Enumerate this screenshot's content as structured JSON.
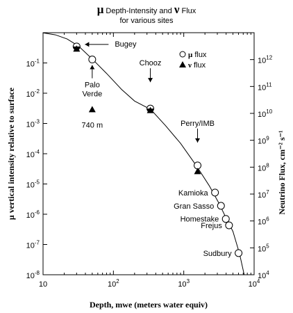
{
  "chart_data": {
    "type": "scatter",
    "title_parts": [
      {
        "text": "μ",
        "style": "bold-symbol"
      },
      {
        "text": " Depth-Intensity and ",
        "style": "plain"
      },
      {
        "text": "ν",
        "style": "bold-symbol"
      },
      {
        "text": " Flux",
        "style": "plain"
      }
    ],
    "subtitle": "for various sites",
    "xlabel": "Depth, mwe (meters water equiv)",
    "ylabel": "μ vertical intensity relative to surface",
    "y2label": "Neutrino Flux, cm⁻² s⁻¹",
    "xscale": "log",
    "yscale": "log",
    "xlim": [
      10,
      10000
    ],
    "ylim": [
      1e-08,
      1
    ],
    "y2lim": [
      10000.0,
      10000000000000.0
    ],
    "x_ticks": [
      {
        "value": 10,
        "base": "10",
        "exp": ""
      },
      {
        "value": 100,
        "base": "10",
        "exp": "2"
      },
      {
        "value": 1000,
        "base": "10",
        "exp": "3"
      },
      {
        "value": 10000,
        "base": "10",
        "exp": "4"
      }
    ],
    "y_ticks": [
      {
        "value": 0.1,
        "base": "10",
        "exp": "-1"
      },
      {
        "value": 0.01,
        "base": "10",
        "exp": "-2"
      },
      {
        "value": 0.001,
        "base": "10",
        "exp": "-3"
      },
      {
        "value": 0.0001,
        "base": "10",
        "exp": "-4"
      },
      {
        "value": 1e-05,
        "base": "10",
        "exp": "-5"
      },
      {
        "value": 1e-06,
        "base": "10",
        "exp": "-6"
      },
      {
        "value": 1e-07,
        "base": "10",
        "exp": "-7"
      },
      {
        "value": 1e-08,
        "base": "10",
        "exp": "-8"
      }
    ],
    "y2_ticks": [
      {
        "value": 1000000000000.0,
        "base": "10",
        "exp": "12"
      },
      {
        "value": 100000000000.0,
        "base": "10",
        "exp": "11"
      },
      {
        "value": 10000000000.0,
        "base": "10",
        "exp": "10"
      },
      {
        "value": 1000000000.0,
        "base": "10",
        "exp": "9"
      },
      {
        "value": 100000000.0,
        "base": "10",
        "exp": "8"
      },
      {
        "value": 10000000.0,
        "base": "10",
        "exp": "7"
      },
      {
        "value": 1000000.0,
        "base": "10",
        "exp": "6"
      },
      {
        "value": 100000.0,
        "base": "10",
        "exp": "5"
      },
      {
        "value": 10000.0,
        "base": "10",
        "exp": "4"
      }
    ],
    "legend": [
      {
        "marker": "circle",
        "symbol": "μ",
        "label": "flux"
      },
      {
        "marker": "triangle",
        "symbol": "ν",
        "label": "flux"
      }
    ],
    "legend_position": "top-right",
    "curve": {
      "x": [
        10,
        15,
        22,
        32,
        50,
        80,
        130,
        200,
        340,
        550,
        900,
        1500,
        2300,
        3200,
        4000,
        5000,
        6200,
        7300
      ],
      "y": [
        0.99,
        0.85,
        0.62,
        0.36,
        0.135,
        0.045,
        0.0135,
        0.0055,
        0.0029,
        0.00085,
        0.00022,
        4.1e-05,
        8.8e-06,
        2.2e-06,
        7.4e-07,
        2.7e-07,
        5e-08,
        9e-09
      ]
    },
    "muon_points": [
      {
        "x": 30,
        "y": 0.35,
        "half_filled": true
      },
      {
        "x": 50,
        "y": 0.13,
        "half_filled": false
      },
      {
        "x": 335,
        "y": 0.0031,
        "half_filled": true
      },
      {
        "x": 1570,
        "y": 4.1e-05,
        "half_filled": false
      },
      {
        "x": 2780,
        "y": 5.2e-06,
        "half_filled": false
      },
      {
        "x": 3380,
        "y": 1.9e-06,
        "half_filled": false
      },
      {
        "x": 3960,
        "y": 7e-07,
        "half_filled": false
      },
      {
        "x": 4400,
        "y": 4.3e-07,
        "half_filled": false
      },
      {
        "x": 6010,
        "y": 5.2e-08,
        "half_filled": false
      }
    ],
    "neutrino_points": [
      {
        "x": 30,
        "flux": 2500000000000.0
      },
      {
        "x": 50,
        "flux": 14000000000.0
      },
      {
        "x": 335,
        "flux": 13000000000.0
      },
      {
        "x": 1570,
        "flux": 70000000.0
      }
    ],
    "site_labels": [
      {
        "text": "Bugey",
        "x": 30,
        "y": 0.35,
        "arrow": true
      },
      {
        "text": "Palo",
        "x": 50,
        "y": 0.13,
        "arrow": true
      },
      {
        "text": "Verde",
        "x": 50,
        "y": 0.13,
        "arrow": false
      },
      {
        "text": "740 m",
        "x": 50,
        "y": 0.13,
        "arrow": false
      },
      {
        "text": "Chooz",
        "x": 335,
        "y": 0.0031,
        "arrow": true
      },
      {
        "text": "Perry/IMB",
        "x": 1570,
        "y": 4.1e-05,
        "arrow": true
      },
      {
        "text": "Kamioka",
        "x": 2780,
        "y": 5.2e-06,
        "arrow": false
      },
      {
        "text": "Gran Sasso",
        "x": 3380,
        "y": 1.9e-06,
        "arrow": false
      },
      {
        "text": "Homestake",
        "x": 3960,
        "y": 7e-07,
        "arrow": false
      },
      {
        "text": "Frejus",
        "x": 4400,
        "y": 4.3e-07,
        "arrow": false
      },
      {
        "text": "Sudbury",
        "x": 6010,
        "y": 5.2e-08,
        "arrow": false
      }
    ]
  }
}
